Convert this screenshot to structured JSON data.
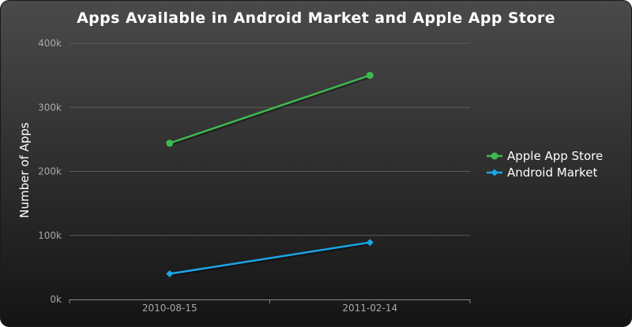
{
  "chart_data": {
    "type": "line",
    "title": "Apps Available in Android Market and Apple App Store",
    "xlabel": "",
    "ylabel": "Number of Apps",
    "categories": [
      "2010-08-15",
      "2011-02-14"
    ],
    "ylim": [
      0,
      400000
    ],
    "yticks": [
      0,
      100000,
      200000,
      300000,
      400000
    ],
    "ytick_labels": [
      "0k",
      "100k",
      "200k",
      "300k",
      "400k"
    ],
    "grid": true,
    "legend_position": "right",
    "series": [
      {
        "name": "Apple App Store",
        "values": [
          244000,
          350000
        ],
        "color": "#3fba4f",
        "marker": "circle"
      },
      {
        "name": "Android Market",
        "values": [
          40000,
          89000
        ],
        "color": "#1aa6e8",
        "marker": "diamond"
      }
    ]
  },
  "colors": {
    "gridline": "#5a5a5a",
    "axis": "#8a8a8a"
  }
}
